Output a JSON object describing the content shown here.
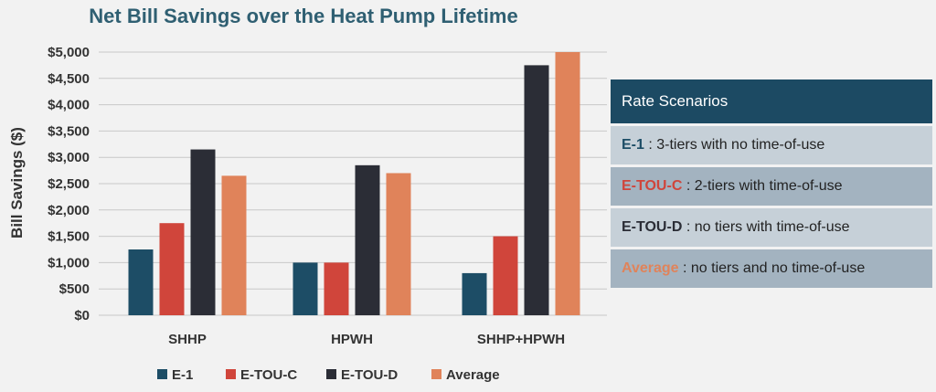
{
  "colors": {
    "E-1": "#1d4d66",
    "E-TOU-C": "#d0453b",
    "E-TOU-D": "#2b2d36",
    "Average": "#e0835a",
    "title": "#2f5f72",
    "box_header": "#1c4a63",
    "row_light": "#c6d0d8",
    "row_mid": "#a3b3c0"
  },
  "chart_data": {
    "type": "bar",
    "title": "Net Bill Savings over the Heat Pump Lifetime",
    "xlabel": "",
    "ylabel": "Bill Savings ($)",
    "ylim": [
      0,
      5000
    ],
    "yticks": [
      "$0",
      "$500",
      "$1,000",
      "$1,500",
      "$2,000",
      "$2,500",
      "$3,000",
      "$3,500",
      "$4,000",
      "$4,500",
      "$5,000"
    ],
    "categories": [
      "SHHP",
      "HPWH",
      "SHHP+HPWH"
    ],
    "series": [
      {
        "name": "E-1",
        "values": [
          1250,
          1000,
          800
        ]
      },
      {
        "name": "E-TOU-C",
        "values": [
          1750,
          1000,
          1500
        ]
      },
      {
        "name": "E-TOU-D",
        "values": [
          3150,
          2850,
          4750
        ]
      },
      {
        "name": "Average",
        "values": [
          2650,
          2700,
          5000
        ]
      }
    ],
    "grid": true,
    "legend": "bottom"
  },
  "rate_box": {
    "header": "Rate Scenarios",
    "rows": [
      {
        "key": "E-1",
        "desc": " : 3-tiers with no time-of-use",
        "key_color": "#1d4d66",
        "bg": "#c6d0d8"
      },
      {
        "key": "E-TOU-C",
        "desc": " : 2-tiers with time-of-use",
        "key_color": "#d0453b",
        "bg": "#a3b3c0"
      },
      {
        "key": "E-TOU-D",
        "desc": " : no tiers with time-of-use",
        "key_color": "#2b2d36",
        "bg": "#c6d0d8"
      },
      {
        "key": "Average",
        "desc": " : no tiers and no time-of-use",
        "key_color": "#e0835a",
        "bg": "#a3b3c0"
      }
    ]
  }
}
